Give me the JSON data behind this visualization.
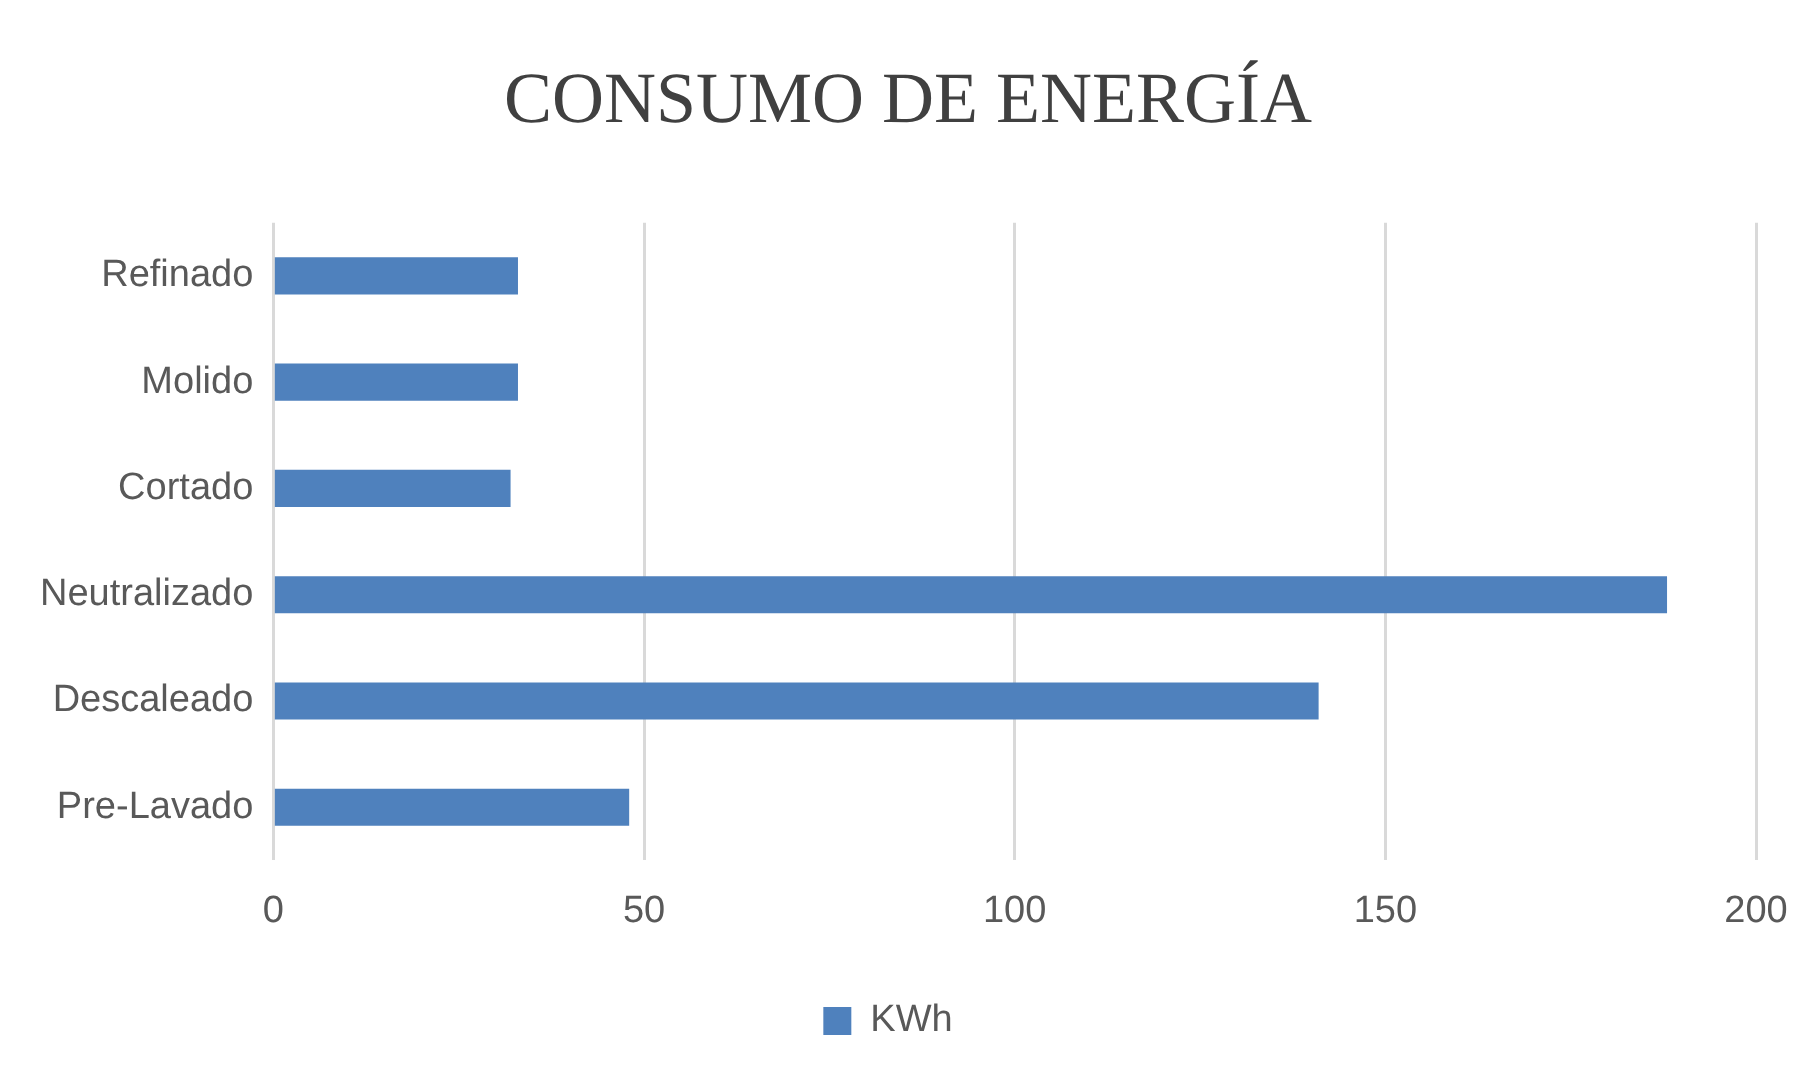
{
  "chart_data": {
    "type": "bar",
    "orientation": "horizontal",
    "title": "CONSUMO DE ENERGÍA",
    "categories": [
      "Refinado",
      "Molido",
      "Cortado",
      "Neutralizado",
      "Descaleado",
      "Pre-Lavado"
    ],
    "series": [
      {
        "name": "KWh",
        "color": "#4f81bd",
        "values": [
          33,
          33,
          32,
          188,
          141,
          48
        ]
      }
    ],
    "xlim": [
      0,
      200
    ],
    "xticks": [
      0,
      50,
      100,
      150,
      200
    ],
    "grid": "x",
    "legend": "bottom"
  }
}
